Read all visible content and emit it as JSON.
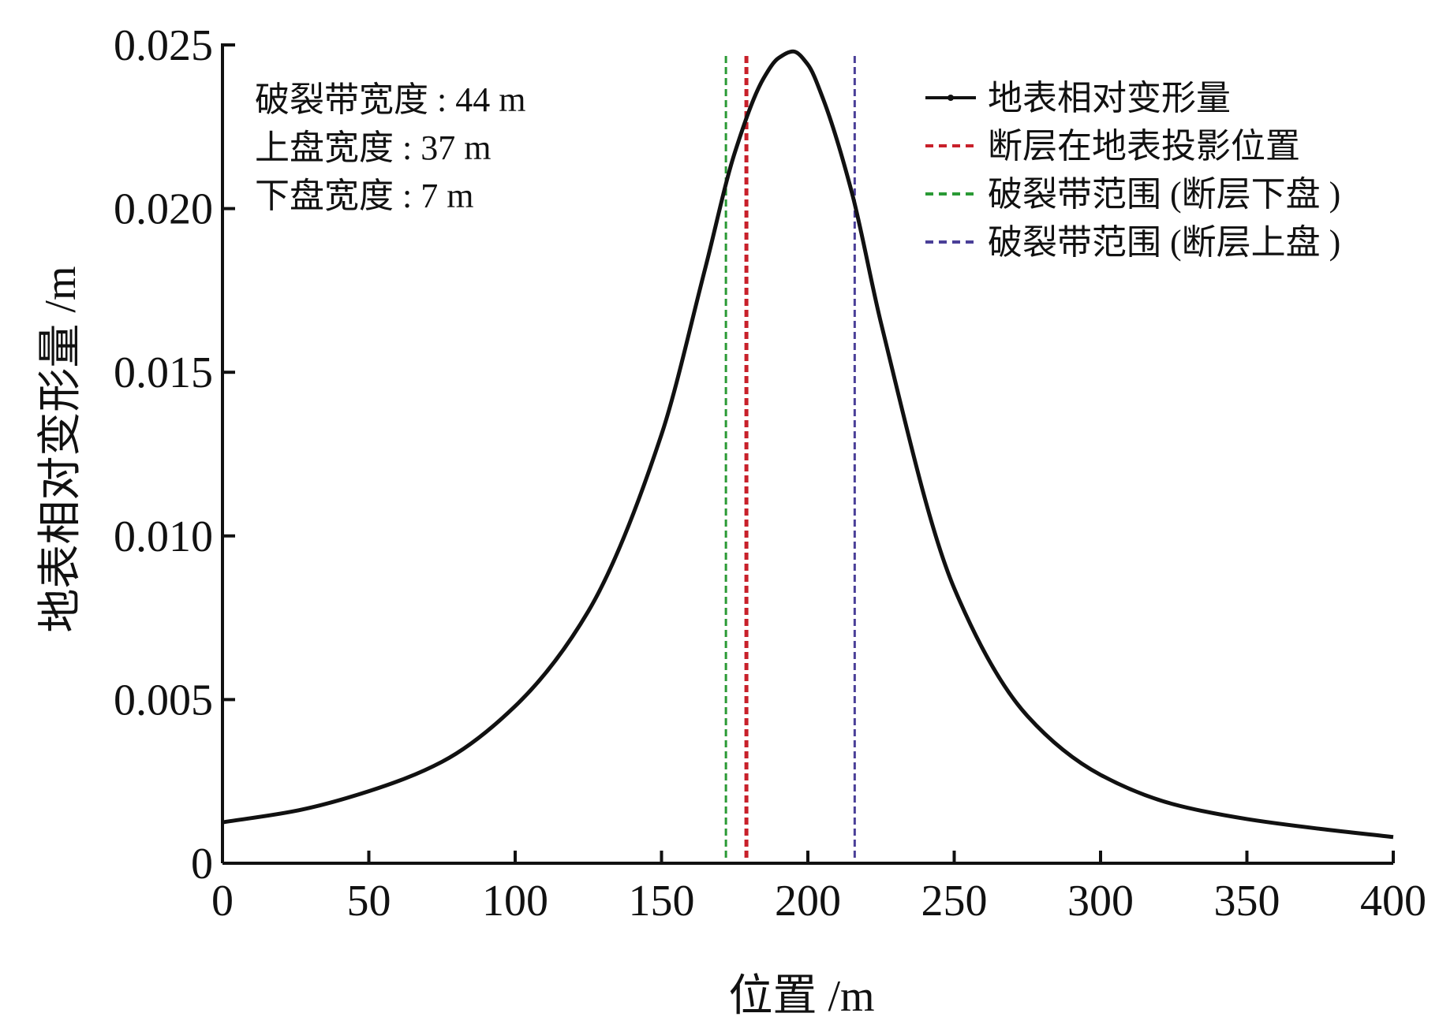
{
  "chart_data": {
    "type": "line",
    "xlabel": "位置 /m",
    "ylabel": "地表相对变形量 /m",
    "xlim": [
      0,
      400
    ],
    "ylim": [
      0,
      0.025
    ],
    "xticks": [
      "0",
      "50",
      "100",
      "150",
      "200",
      "250",
      "300",
      "350",
      "400"
    ],
    "yticks": [
      "0",
      "0.005",
      "0.010",
      "0.015",
      "0.020",
      "0.025"
    ],
    "grid": false,
    "legend_position": "top-right",
    "annotations": [
      "破裂带宽度 : 44 m",
      "上盘宽度 : 37 m",
      "下盘宽度 : 7 m"
    ],
    "series": [
      {
        "name": "地表相对变形量",
        "style": "solid",
        "color": "#111111",
        "x": [
          0,
          25,
          50,
          75,
          100,
          125,
          150,
          165,
          175,
          185,
          190,
          195,
          200,
          205,
          215,
          225,
          250,
          275,
          300,
          325,
          350,
          375,
          400
        ],
        "y": [
          0.00125,
          0.0016,
          0.0022,
          0.0031,
          0.0048,
          0.0077,
          0.0131,
          0.0182,
          0.0217,
          0.024,
          0.0246,
          0.0248,
          0.0244,
          0.0234,
          0.0205,
          0.0165,
          0.0084,
          0.0045,
          0.0027,
          0.0018,
          0.00135,
          0.00105,
          0.0008
        ]
      },
      {
        "name": "断层在地表投影位置",
        "style": "dashed",
        "color": "#c8202a",
        "x_position": 179
      },
      {
        "name": "破裂带范围 (断层下盘 )",
        "style": "dashed",
        "color": "#2a9a35",
        "x_position": 172
      },
      {
        "name": "破裂带范围 (断层上盘 )",
        "style": "dashed",
        "color": "#4a3f98",
        "x_position": 216
      }
    ]
  }
}
